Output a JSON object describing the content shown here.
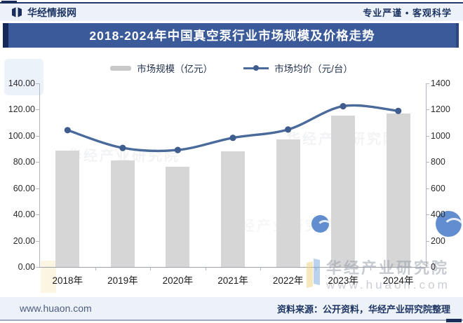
{
  "header": {
    "brand": "华经情报网",
    "slogan": "专业严谨 • 客观科学"
  },
  "title": "2018-2024年中国真空泵行业市场规模及价格走势",
  "legend": [
    {
      "label": "市场规模（亿元）",
      "type": "bar"
    },
    {
      "label": "市场均价（元/台）",
      "type": "line"
    }
  ],
  "footer": {
    "website": "www.huaon.com",
    "source": "资料来源：公开资料，华经产业研究院整理"
  },
  "watermark": {
    "line1": "华经产业研究院",
    "line2": "www.huaon.com"
  },
  "colors": {
    "bar": "#d6d6d6",
    "line": "#4a6a9b",
    "marker": "#3f5d8d",
    "banner": "#3a5a99",
    "banner_edge": "#16295a",
    "navy": "#1d3463"
  },
  "chart_data": {
    "type": "bar",
    "categories": [
      "2018年",
      "2019年",
      "2020年",
      "2021年",
      "2022年",
      "2023年",
      "2024年"
    ],
    "series": [
      {
        "name": "市场规模（亿元）",
        "type": "bar",
        "axis": "left",
        "values": [
          88.9,
          81.3,
          76.2,
          88.0,
          97.3,
          115.6,
          117.3
        ]
      },
      {
        "name": "市场均价（元/台）",
        "type": "line",
        "axis": "right",
        "values": [
          1043,
          908,
          892,
          985,
          1048,
          1226,
          1190
        ]
      }
    ],
    "left_axis": {
      "min": 0,
      "max": 140,
      "step": 20,
      "ticks": [
        "140.00",
        "120.00",
        "100.00",
        "80.00",
        "60.00",
        "40.00",
        "20.00",
        "0.00"
      ]
    },
    "right_axis": {
      "min": 0,
      "max": 1400,
      "step": 200,
      "ticks": [
        "1400",
        "1200",
        "1000",
        "800",
        "600",
        "400",
        "200",
        "0"
      ]
    },
    "grid": false,
    "legend_position": "top"
  }
}
